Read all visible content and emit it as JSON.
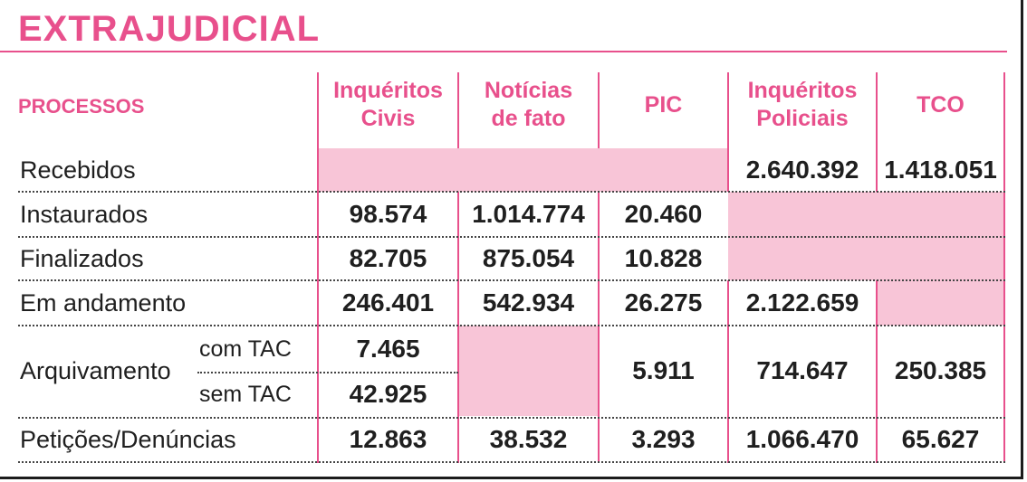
{
  "title": "EXTRAJUDICIAL",
  "header": {
    "processos": "PROCESSOS",
    "inq_civis_1": "Inquéritos",
    "inq_civis_2": "Civis",
    "noticias_1": "Notícias",
    "noticias_2": "de fato",
    "pic": "PIC",
    "inq_pol_1": "Inquéritos",
    "inq_pol_2": "Policiais",
    "tco": "TCO"
  },
  "rows": {
    "recebidos": {
      "label": "Recebidos",
      "inq_pol": "2.640.392",
      "tco": "1.418.051"
    },
    "instaurados": {
      "label": "Instaurados",
      "inq_civis": "98.574",
      "noticias": "1.014.774",
      "pic": "20.460"
    },
    "finalizados": {
      "label": "Finalizados",
      "inq_civis": "82.705",
      "noticias": "875.054",
      "pic": "10.828"
    },
    "em_andamento": {
      "label": "Em andamento",
      "inq_civis": "246.401",
      "noticias": "542.934",
      "pic": "26.275",
      "inq_pol": "2.122.659"
    },
    "arquivamento": {
      "label": "Arquivamento",
      "com_tac_label": "com TAC",
      "com_tac_inq_civis": "7.465",
      "sem_tac_label": "sem TAC",
      "sem_tac_inq_civis": "42.925",
      "pic": "5.911",
      "inq_pol": "714.647",
      "tco": "250.385"
    },
    "peticoes": {
      "label": "Petições/Denúncias",
      "inq_civis": "12.863",
      "noticias": "38.532",
      "pic": "3.293",
      "inq_pol": "1.066.470",
      "tco": "65.627"
    }
  },
  "colors": {
    "accent": "#e8508c",
    "shade": "#f8c5d7",
    "text": "#1f1f1f"
  }
}
